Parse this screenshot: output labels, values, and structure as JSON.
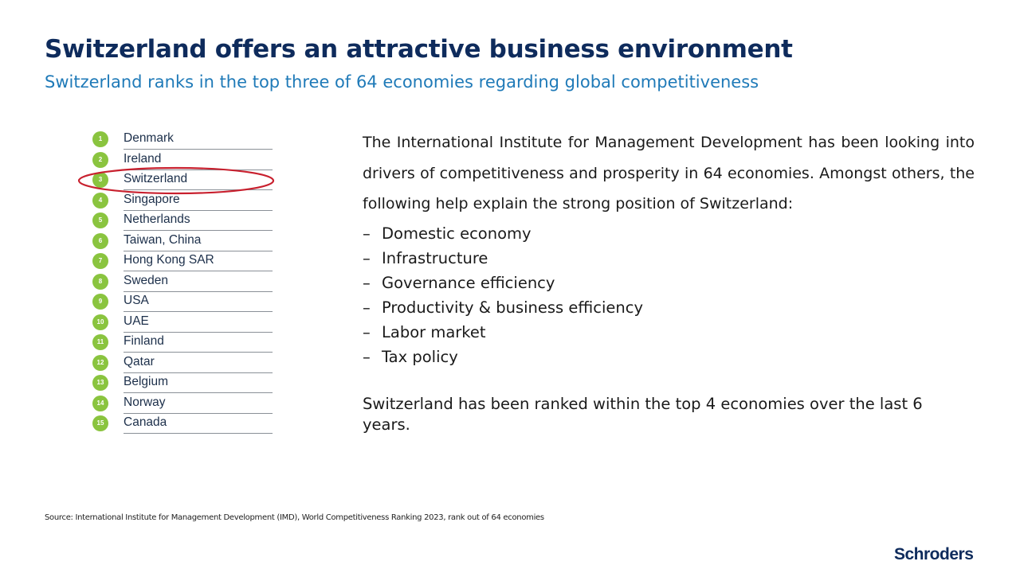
{
  "header": {
    "title": "Switzerland offers an attractive business environment",
    "subtitle": "Switzerland ranks in the top three of 64 economies regarding global competitiveness"
  },
  "ranking": [
    {
      "rank": "1",
      "name": "Denmark"
    },
    {
      "rank": "2",
      "name": "Ireland"
    },
    {
      "rank": "3",
      "name": "Switzerland"
    },
    {
      "rank": "4",
      "name": "Singapore"
    },
    {
      "rank": "5",
      "name": "Netherlands"
    },
    {
      "rank": "6",
      "name": "Taiwan, China"
    },
    {
      "rank": "7",
      "name": "Hong Kong SAR"
    },
    {
      "rank": "8",
      "name": "Sweden"
    },
    {
      "rank": "9",
      "name": "USA"
    },
    {
      "rank": "10",
      "name": "UAE"
    },
    {
      "rank": "11",
      "name": "Finland"
    },
    {
      "rank": "12",
      "name": "Qatar"
    },
    {
      "rank": "13",
      "name": "Belgium"
    },
    {
      "rank": "14",
      "name": "Norway"
    },
    {
      "rank": "15",
      "name": "Canada"
    }
  ],
  "highlighted_rank": "3",
  "colors": {
    "title": "#0e2b5c",
    "subtitle": "#1f7ab8",
    "badge": "#8ac43f",
    "highlight": "#c8202e"
  },
  "body": {
    "intro": "The International Institute for Management Development has been looking into drivers of competitiveness and prosperity in 64 economies. Amongst others, the following help explain the strong position of Switzerland:",
    "bullet_marker": "–",
    "bullets": [
      "Domestic economy",
      "Infrastructure",
      "Governance efficiency",
      "Productivity &  business efficiency",
      "Labor market",
      "Tax policy"
    ],
    "closing": "Switzerland has been ranked within the top 4 economies over the last 6 years."
  },
  "footer": {
    "source": "Source: International Institute for Management Development (IMD), World Competitiveness Ranking 2023, rank out of 64 economies",
    "logo": "Schroders"
  }
}
